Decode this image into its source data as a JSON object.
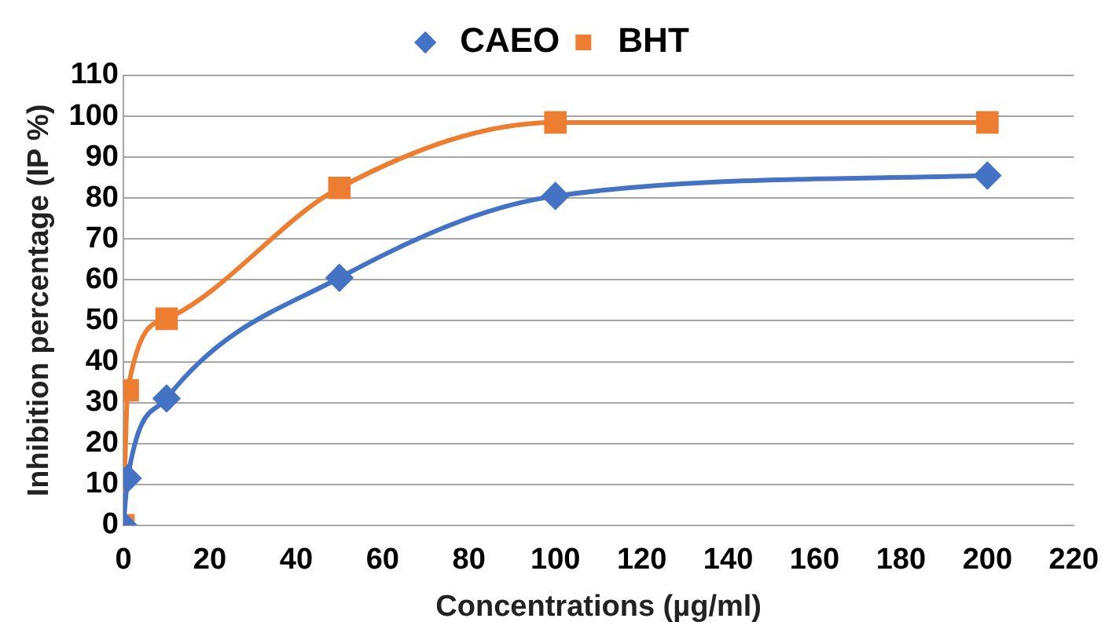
{
  "chart_data": {
    "type": "line",
    "xlabel": "Concentrations (µg/ml)",
    "ylabel": "Inhibition percentage (IP %)",
    "x": [
      0,
      1,
      10,
      50,
      100,
      200
    ],
    "series": [
      {
        "name": "CAEO",
        "color": "#4472c4",
        "values": [
          0,
          11.5,
          31,
          60.5,
          80.5,
          85.5
        ],
        "marker": "diamond"
      },
      {
        "name": "BHT",
        "color": "#ed7d31",
        "values": [
          0,
          33,
          50.5,
          82.5,
          98.5,
          98.5
        ],
        "marker": "square"
      }
    ],
    "xlim": [
      0,
      220
    ],
    "xticks": [
      0,
      20,
      40,
      60,
      80,
      100,
      120,
      140,
      160,
      180,
      200,
      220
    ],
    "ylim": [
      0,
      110
    ],
    "yticks": [
      0,
      10,
      20,
      30,
      40,
      50,
      60,
      70,
      80,
      90,
      100,
      110
    ],
    "grid": "y",
    "legend": "top"
  }
}
